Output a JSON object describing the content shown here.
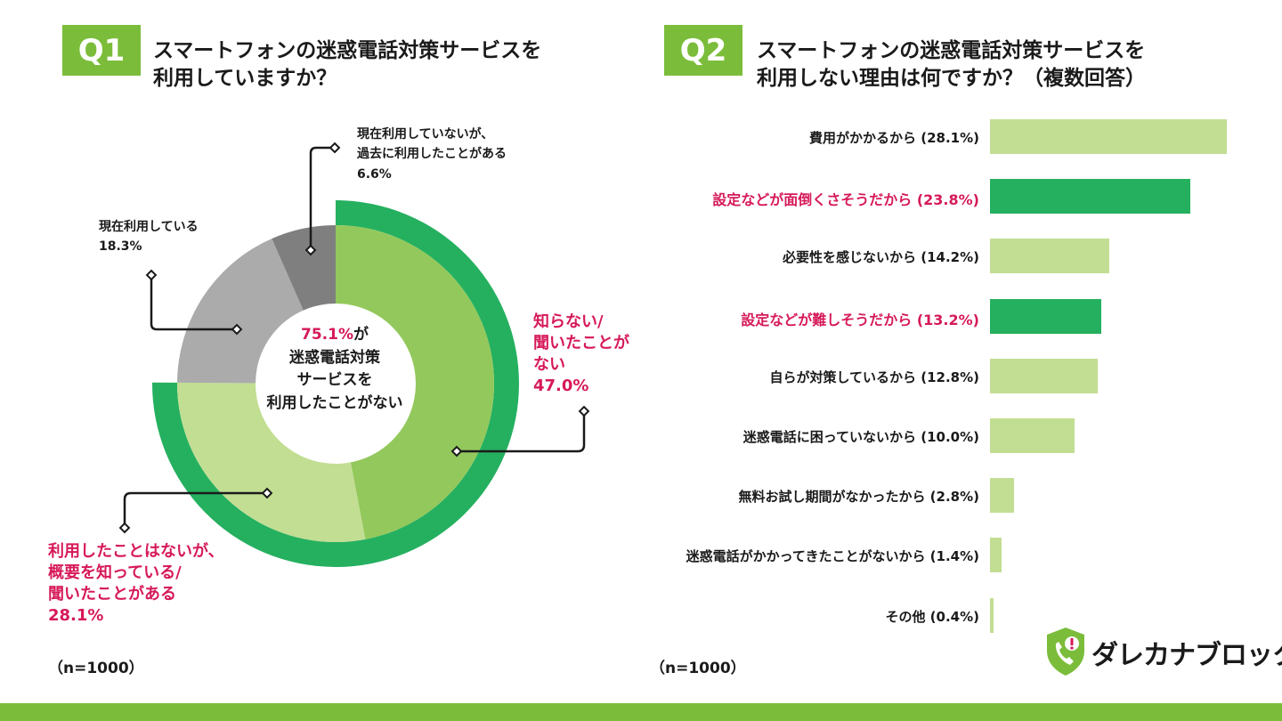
{
  "colors": {
    "brand_green": "#7bbd3a",
    "dark_green": "#25b05f",
    "mid_green": "#93c85c",
    "light_green": "#c2de92",
    "gray_light": "#ababab",
    "gray_dark": "#7f7f7f",
    "highlight_pink": "#d6195a"
  },
  "q1": {
    "badge": "Q1",
    "title_lines": [
      "スマートフォンの迷惑電話対策サービスを",
      "利用していますか？"
    ],
    "center_pct": "75.1%",
    "center_suffix": "が",
    "center_lines": [
      "迷惑電話対策",
      "サービスを",
      "利用したことがない"
    ],
    "labels": {
      "current": [
        "現在利用している",
        "18.3%"
      ],
      "past": [
        "現在利用していないが、",
        "過去に利用したことがある",
        "6.6%"
      ],
      "unknown": [
        "知らない/",
        "聞いたことが",
        "ない",
        "47.0%"
      ],
      "aware": [
        "利用したことはないが、",
        "概要を知っている/",
        "聞いたことがある",
        "28.1%"
      ]
    },
    "n": "（n=1000）"
  },
  "q2": {
    "badge": "Q2",
    "title_lines": [
      "スマートフォンの迷惑電話対策サービスを",
      "利用しない理由は何ですか？（複数回答）"
    ],
    "n": "（n=1000）"
  },
  "chart_data": [
    {
      "type": "pie",
      "variant": "nested-donut",
      "title": "スマートフォンの迷惑電話対策サービスを利用していますか？",
      "slices": [
        {
          "name": "知らない/聞いたことがない",
          "value": 47.0,
          "highlight": true
        },
        {
          "name": "利用したことはないが、概要を知っている/聞いたことがある",
          "value": 28.1,
          "highlight": true
        },
        {
          "name": "現在利用している",
          "value": 18.3,
          "highlight": false
        },
        {
          "name": "現在利用していないが、過去に利用したことがある",
          "value": 6.6,
          "highlight": false
        }
      ],
      "outer_ring": {
        "name": "迷惑電話対策サービスを利用したことがない",
        "value": 75.1
      },
      "n": 1000
    },
    {
      "type": "bar",
      "orientation": "horizontal",
      "title": "スマートフォンの迷惑電話対策サービスを利用しない理由は何ですか？（複数回答）",
      "xlim": [
        0,
        30
      ],
      "categories": [
        "費用がかかるから",
        "設定などが面倒くさそうだから",
        "必要性を感じないから",
        "設定などが難しそうだから",
        "自らが対策しているから",
        "迷惑電話に困っていないから",
        "無料お試し期間がなかったから",
        "迷惑電話がかかってきたことがないから",
        "その他"
      ],
      "values": [
        28.1,
        23.8,
        14.2,
        13.2,
        12.8,
        10.0,
        2.8,
        1.4,
        0.4
      ],
      "display_labels": [
        "費用がかかるから (28.1%)",
        "設定などが面倒くさそうだから (23.8%)",
        "必要性を感じないから (14.2%)",
        "設定などが難しそうだから (13.2%)",
        "自らが対策しているから (12.8%)",
        "迷惑電話に困っていないから (10.0%)",
        "無料お試し期間がなかったから (2.8%)",
        "迷惑電話がかかってきたことがないから (1.4%)",
        "その他 (0.4%)"
      ],
      "highlight": [
        false,
        true,
        false,
        true,
        false,
        false,
        false,
        false,
        false
      ],
      "n": 1000
    }
  ],
  "logo": {
    "text": "ダレカナブロック",
    "icon": "shield-phone-icon"
  }
}
